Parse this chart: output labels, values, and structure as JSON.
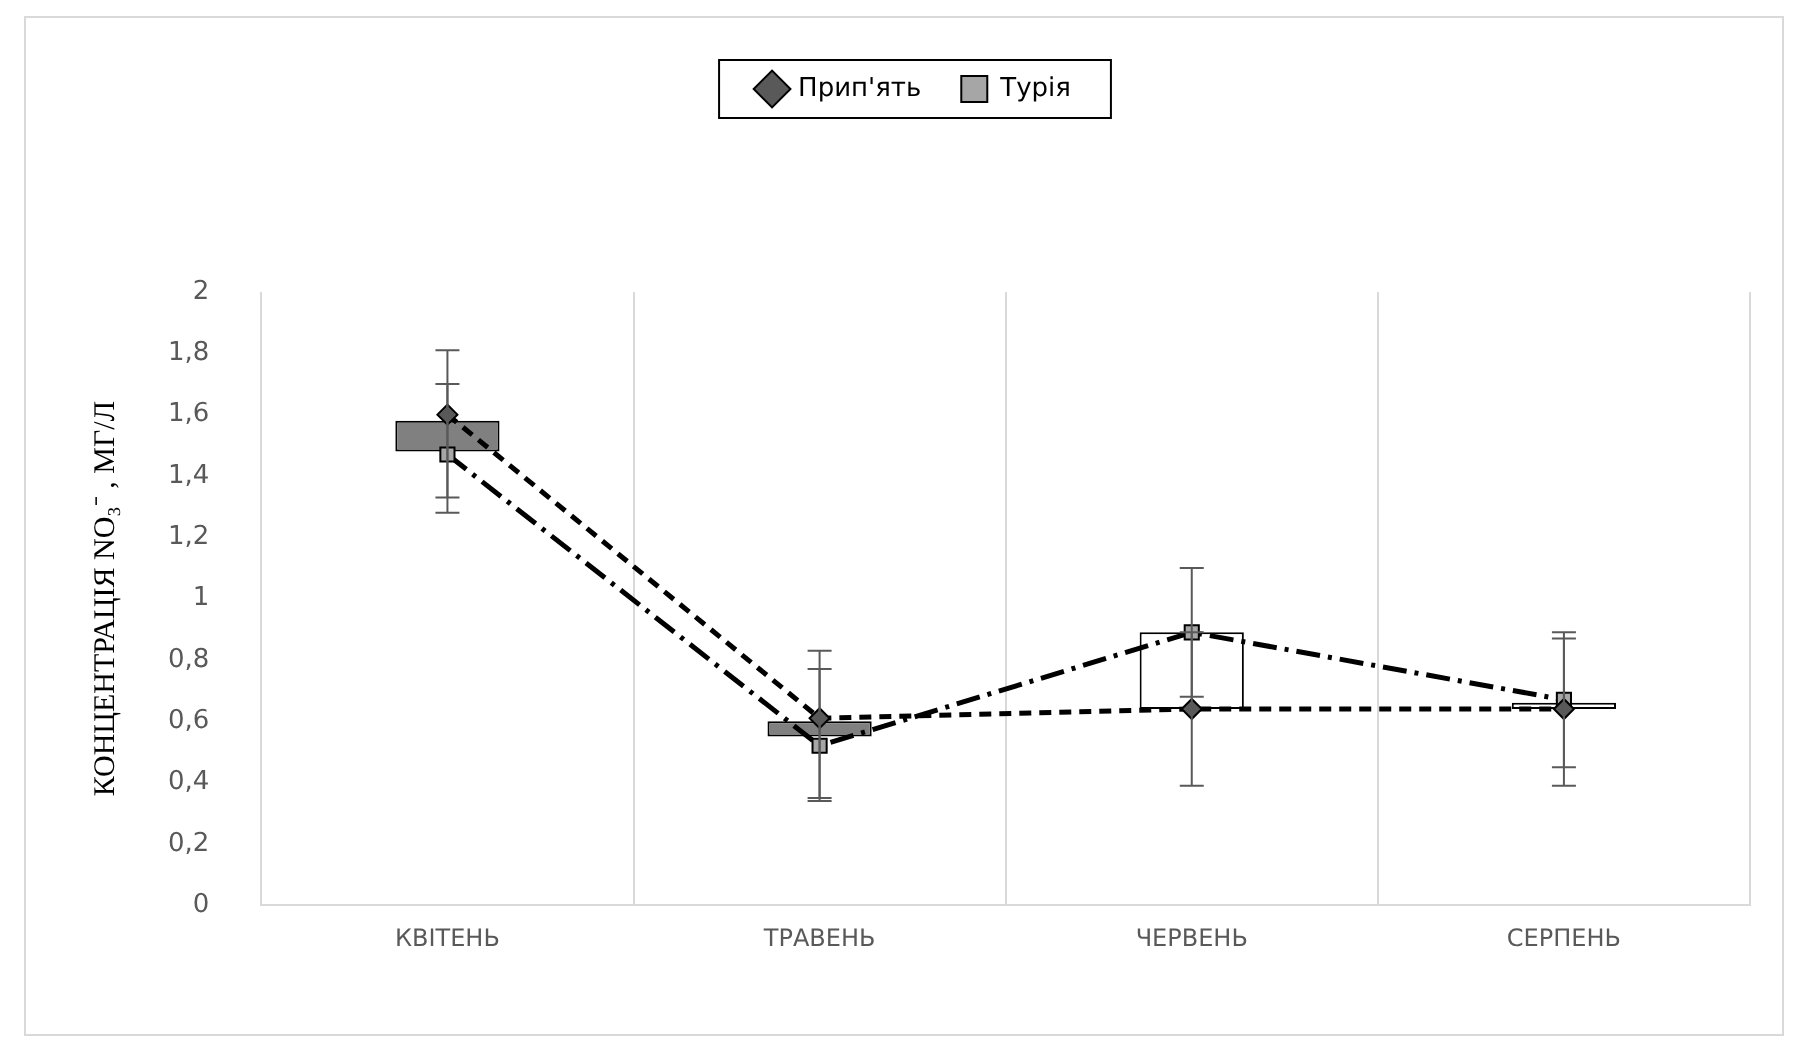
{
  "chart_data": {
    "type": "line",
    "ylabel": "КОНЦЕНТРАЦІЯ NO₃⁻ , МГ/Л",
    "categories": [
      "КВІТЕНЬ",
      "ТРАВЕНЬ",
      "ЧЕРВЕНЬ",
      "СЕРПЕНЬ"
    ],
    "series": [
      {
        "type": "bar",
        "colors": [
          "#808080",
          "#808080",
          "#ffffff",
          "#ffffff"
        ],
        "base": [
          1.48,
          0.55,
          0.64,
          0.64
        ],
        "values": [
          0.1,
          0.05,
          0.25,
          0.02
        ]
      },
      {
        "name": "Прип'ять",
        "color": "#595959",
        "marker": "diamond",
        "line_style": "dashed",
        "values": [
          1.6,
          0.61,
          0.64,
          0.64
        ],
        "errors": [
          [
            1.33,
            1.81
          ],
          [
            0.35,
            0.83
          ],
          [
            0.39,
            0.89
          ],
          [
            0.39,
            0.89
          ]
        ]
      },
      {
        "name": "Турія",
        "color": "#a6a6a6",
        "marker": "square",
        "line_style": "dashdot",
        "values": [
          1.47,
          0.52,
          0.89,
          0.67
        ],
        "errors": [
          [
            1.28,
            1.7
          ],
          [
            0.34,
            0.77
          ],
          [
            0.68,
            1.1
          ],
          [
            0.45,
            0.87
          ]
        ]
      }
    ],
    "ylim": [
      0,
      2
    ],
    "yticks": [
      0,
      {
        "value": 0.2,
        "label": "0,2"
      },
      {
        "value": 0.4,
        "label": "0,4"
      },
      {
        "value": 0.6,
        "label": "0,6"
      },
      {
        "value": 0.8,
        "label": "0,8"
      },
      1,
      {
        "value": 1.2,
        "label": "1,2"
      },
      {
        "value": 1.4,
        "label": "1,4"
      },
      {
        "value": 1.6,
        "label": "1,6"
      },
      {
        "value": 1.8,
        "label": "1,8"
      },
      2
    ],
    "grid": "x",
    "legend": "top"
  }
}
